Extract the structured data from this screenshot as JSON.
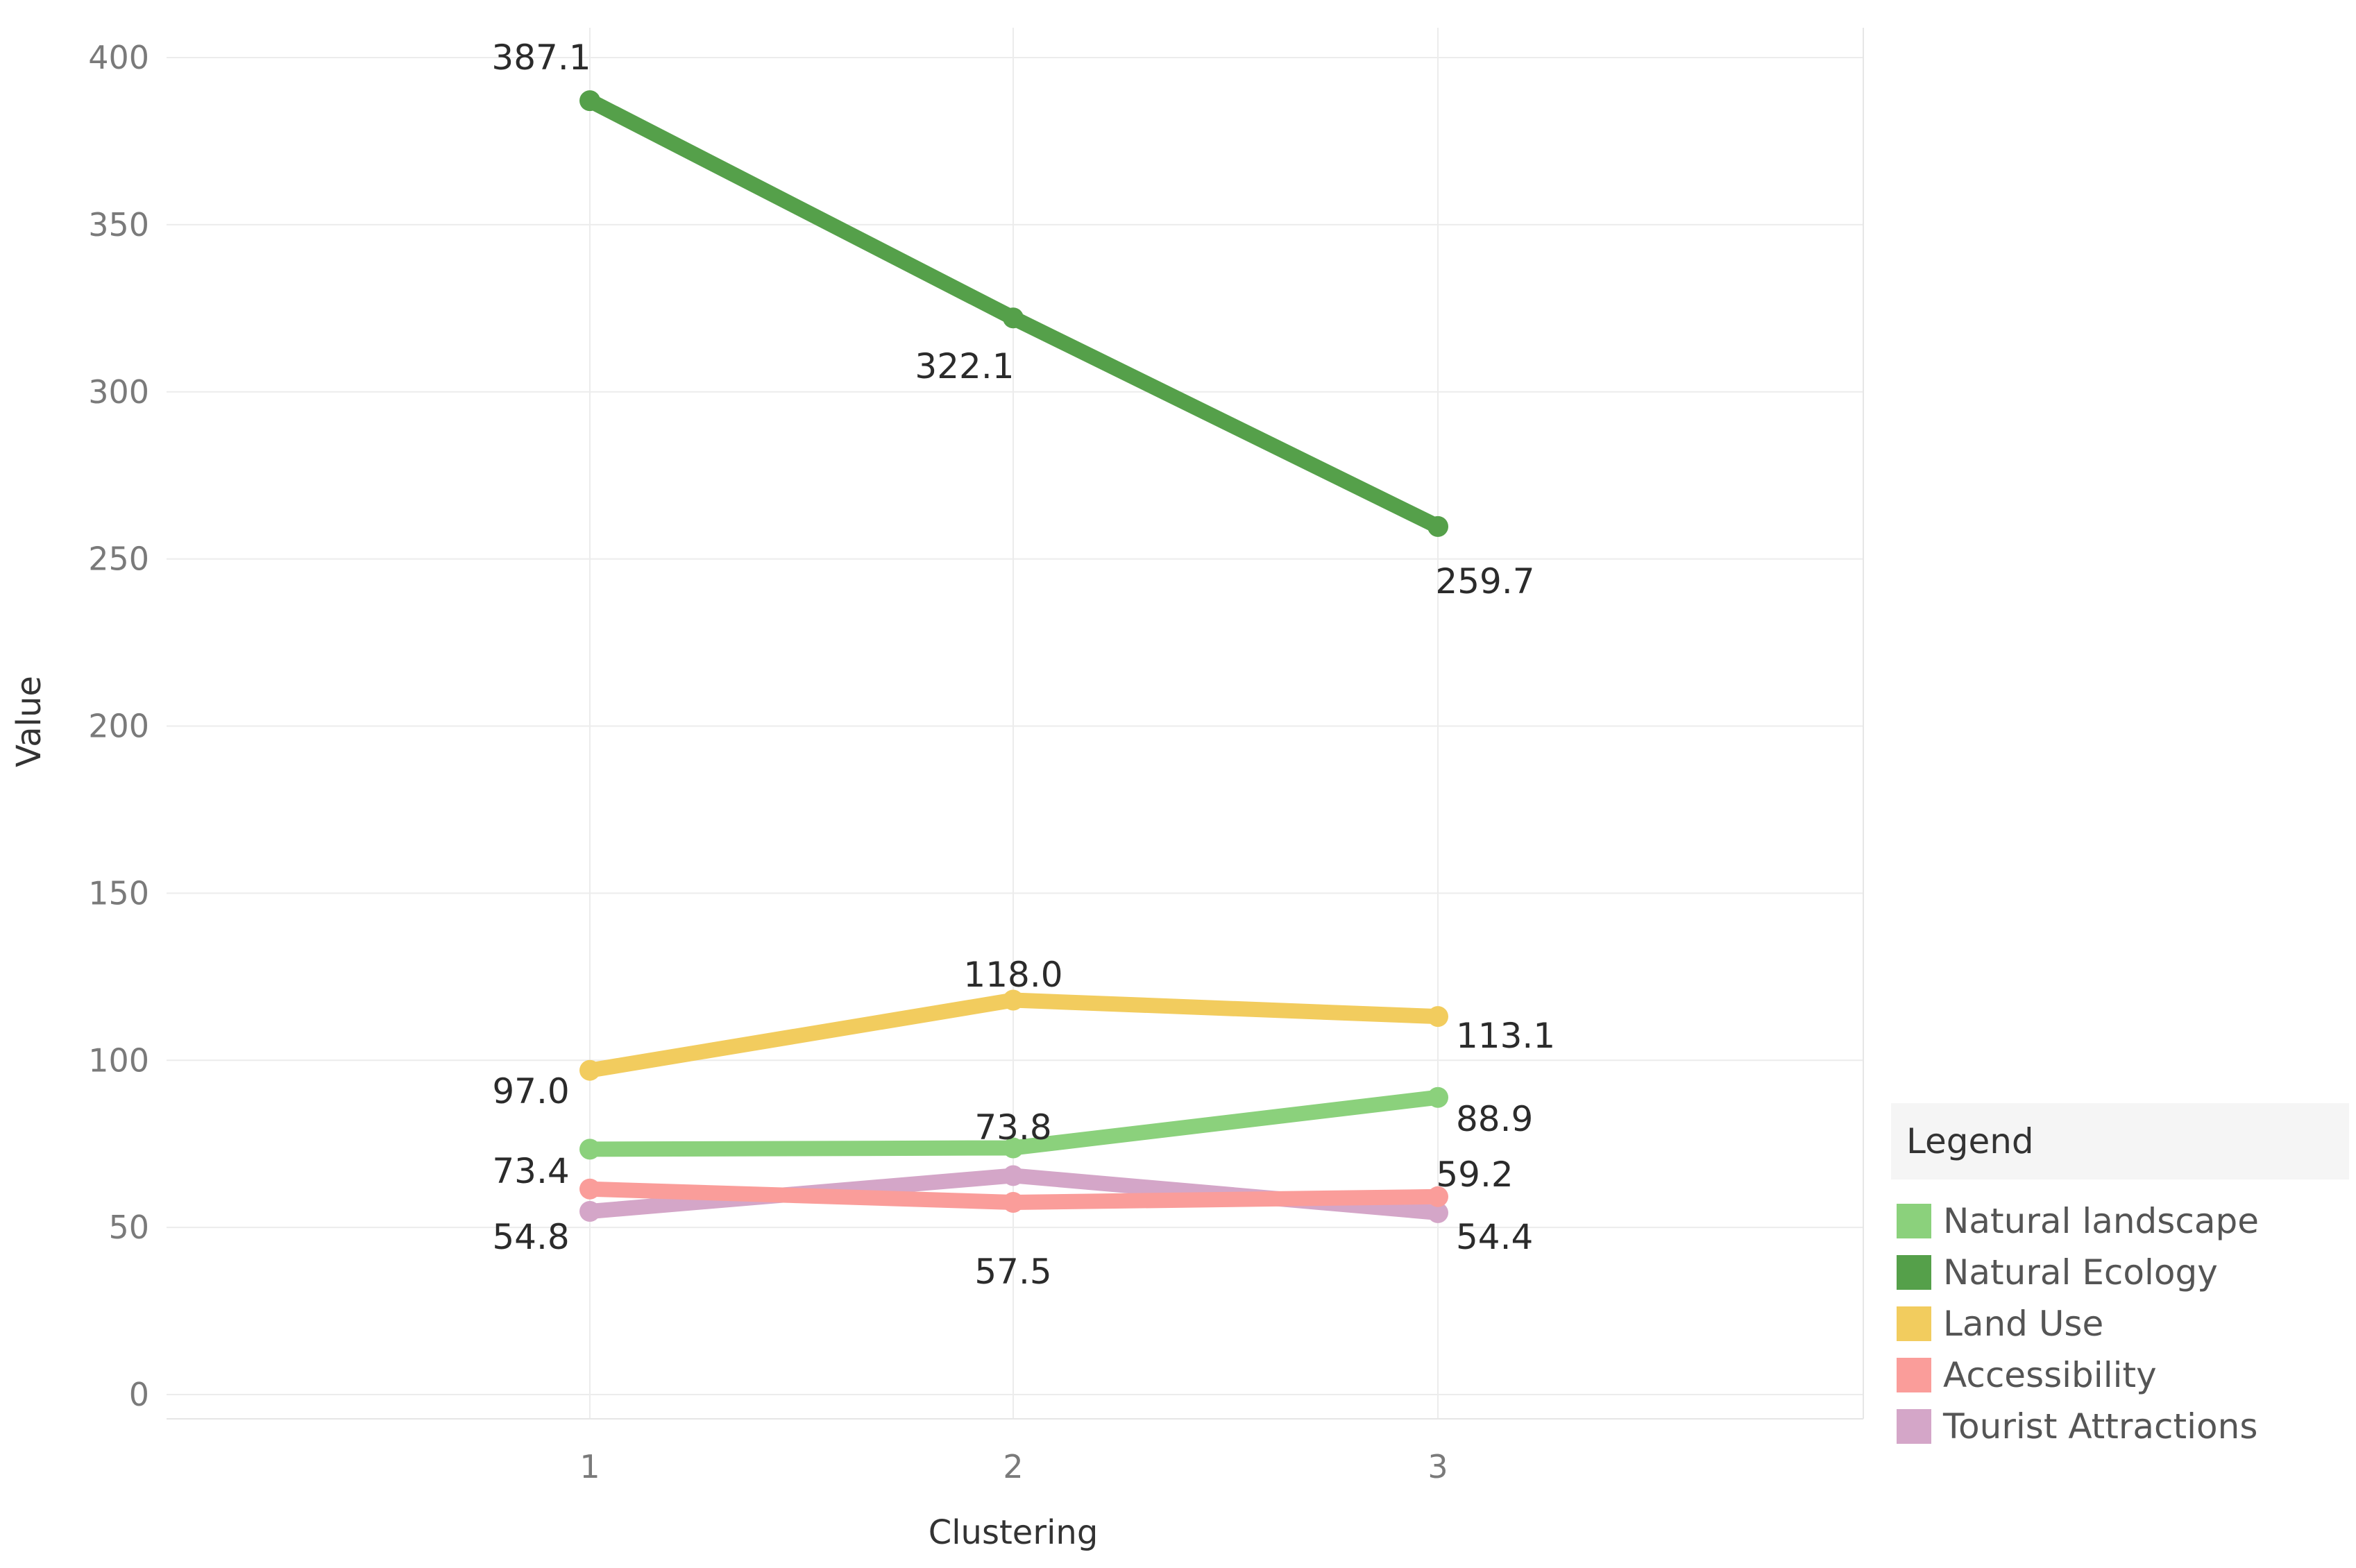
{
  "chart_data": {
    "type": "line",
    "xlabel": "Clustering",
    "ylabel": "Value",
    "x": [
      "1",
      "2",
      "3"
    ],
    "ylim": [
      0,
      400
    ],
    "yticks": [
      0,
      50,
      100,
      150,
      200,
      250,
      300,
      350,
      400
    ],
    "grid": true,
    "legend": {
      "title": "Legend",
      "placement": "bottom-right"
    },
    "series": [
      {
        "name": "Natural landscape",
        "color": "#8bd17c",
        "values": [
          73.4,
          73.8,
          88.9
        ]
      },
      {
        "name": "Natural Ecology",
        "color": "#55a04a",
        "values": [
          387.1,
          322.1,
          259.7
        ]
      },
      {
        "name": "Land Use",
        "color": "#f2cc5e",
        "values": [
          97.0,
          118.0,
          113.1
        ]
      },
      {
        "name": "Accessibility",
        "color": "#fa9d9a",
        "values": [
          61.5,
          57.5,
          59.2
        ]
      },
      {
        "name": "Tourist Attractions",
        "color": "#d4a6c8",
        "values": [
          54.8,
          65.5,
          54.4
        ]
      }
    ],
    "data_labels": [
      {
        "series": "Natural Ecology",
        "x": "1",
        "text": "387.1"
      },
      {
        "series": "Natural Ecology",
        "x": "2",
        "text": "322.1"
      },
      {
        "series": "Natural Ecology",
        "x": "3",
        "text": "259.7"
      },
      {
        "series": "Land Use",
        "x": "1",
        "text": "97.0"
      },
      {
        "series": "Land Use",
        "x": "2",
        "text": "118.0"
      },
      {
        "series": "Land Use",
        "x": "3",
        "text": "113.1"
      },
      {
        "series": "Natural landscape",
        "x": "1",
        "text": "73.4"
      },
      {
        "series": "Natural landscape",
        "x": "2",
        "text": "73.8"
      },
      {
        "series": "Natural landscape",
        "x": "3",
        "text": "88.9"
      },
      {
        "series": "Accessibility",
        "x": "2",
        "text": "57.5"
      },
      {
        "series": "Accessibility",
        "x": "3",
        "text": "59.2"
      },
      {
        "series": "Tourist Attractions",
        "x": "1",
        "text": "54.8"
      },
      {
        "series": "Tourist Attractions",
        "x": "3",
        "text": "54.4"
      }
    ]
  }
}
